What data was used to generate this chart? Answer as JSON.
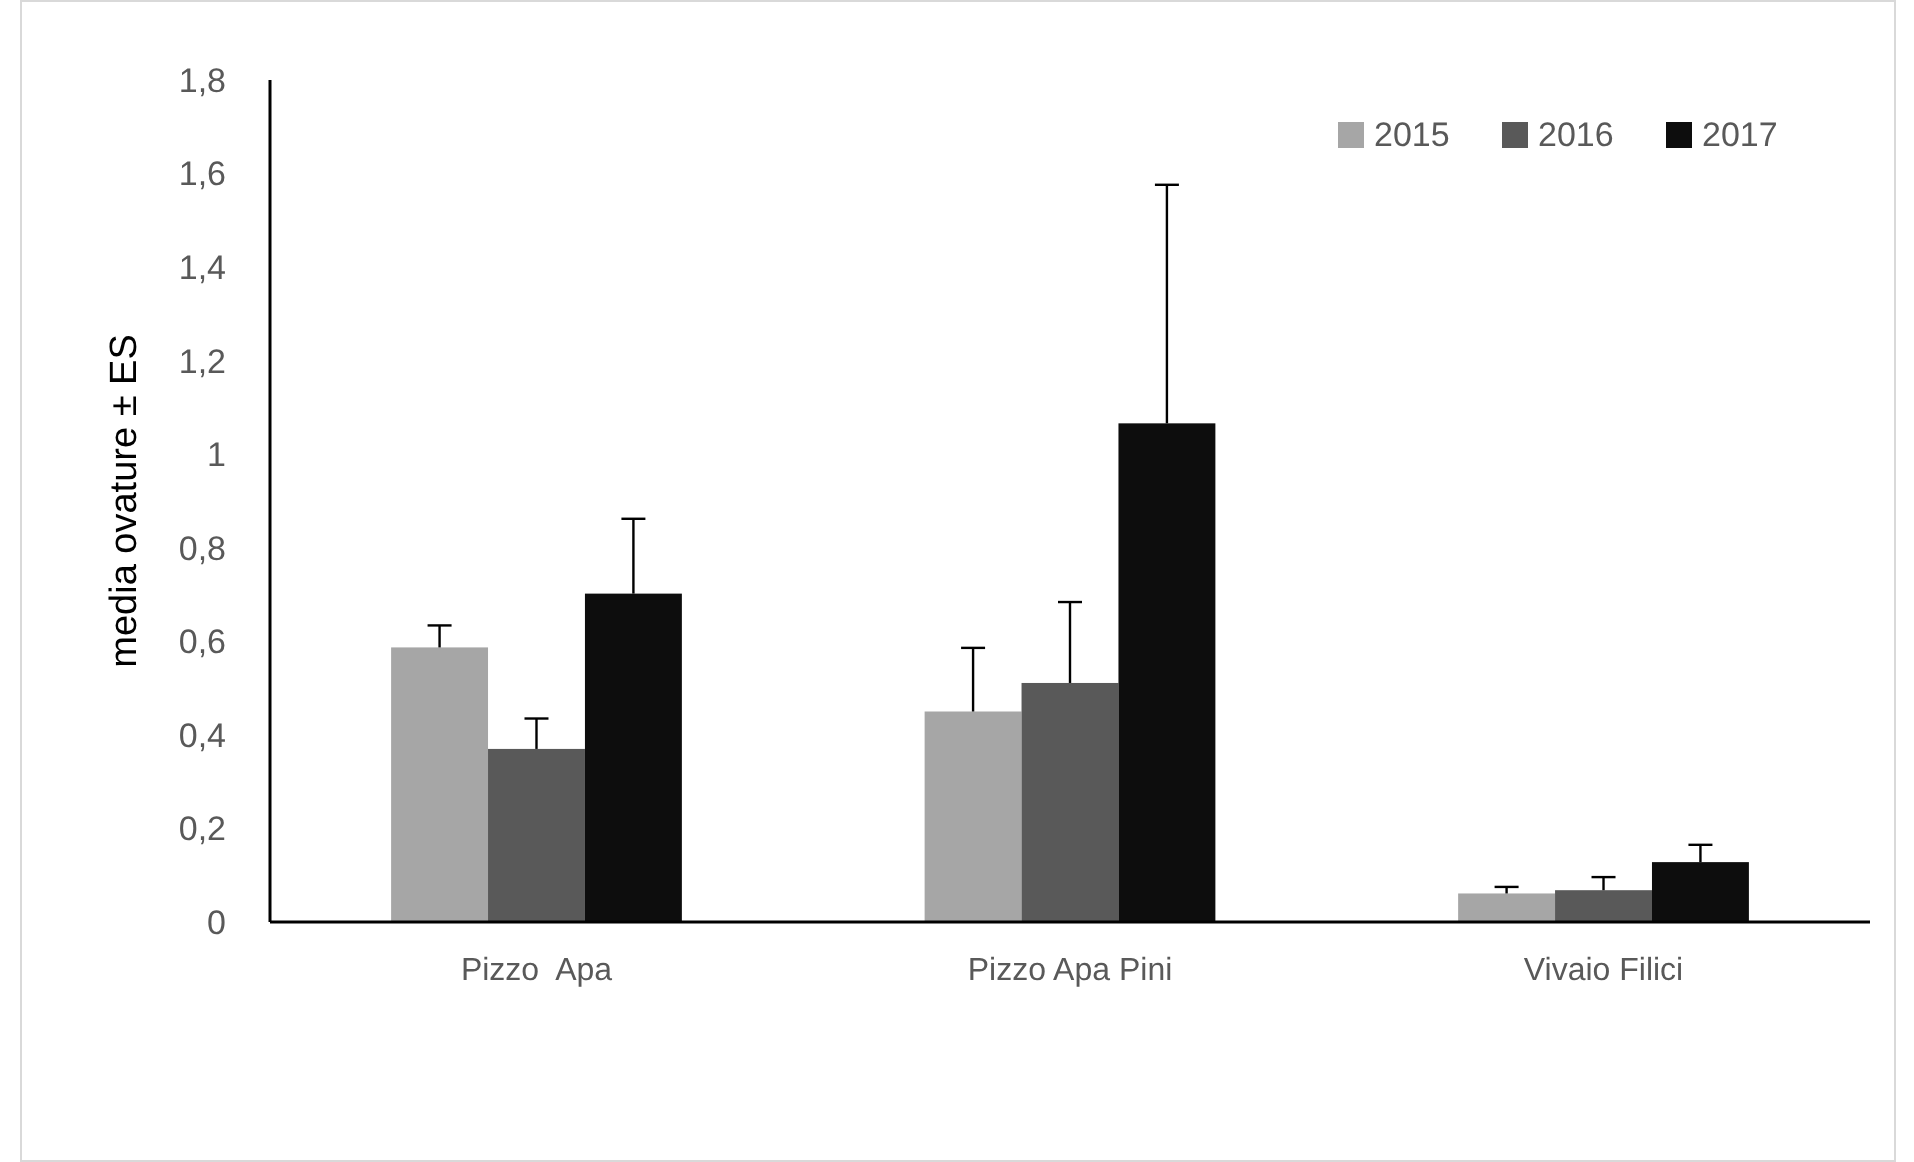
{
  "chart_data": {
    "type": "bar",
    "ylabel": "media ovature ± ES",
    "categories": [
      "Pizzo  Apa",
      "Pizzo Apa Pini",
      "Vivaio Filici"
    ],
    "series": [
      {
        "name": "2015",
        "color": "#a6a6a6",
        "values": [
          0.587,
          0.45,
          0.061
        ],
        "errors": [
          0.047,
          0.136,
          0.014
        ]
      },
      {
        "name": "2016",
        "color": "#595959",
        "values": [
          0.37,
          0.511,
          0.068
        ],
        "errors": [
          0.065,
          0.173,
          0.028
        ]
      },
      {
        "name": "2017",
        "color": "#0d0d0d",
        "values": [
          0.702,
          1.066,
          0.128
        ],
        "errors": [
          0.16,
          0.51,
          0.037
        ]
      }
    ],
    "ylim": [
      0,
      1.8
    ],
    "yticks": [
      {
        "value": 0,
        "label": "0"
      },
      {
        "value": 0.2,
        "label": "0,2"
      },
      {
        "value": 0.4,
        "label": "0,4"
      },
      {
        "value": 0.6,
        "label": "0,6"
      },
      {
        "value": 0.8,
        "label": "0,8"
      },
      {
        "value": 1,
        "label": "1"
      },
      {
        "value": 1.2,
        "label": "1,2"
      },
      {
        "value": 1.4,
        "label": "1,4"
      },
      {
        "value": 1.6,
        "label": "1,6"
      },
      {
        "value": 1.8,
        "label": "1,8"
      }
    ],
    "grid": false,
    "legend": "top right"
  }
}
